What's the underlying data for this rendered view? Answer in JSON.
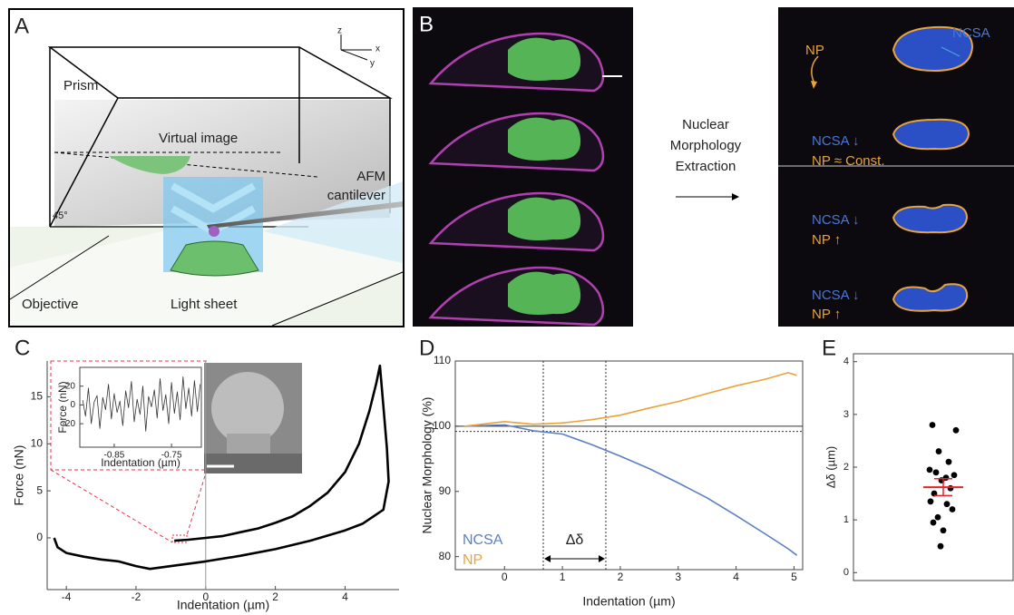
{
  "panel_labels": [
    "A",
    "B",
    "C",
    "D",
    "E"
  ],
  "panel_a": {
    "prism": "Prism",
    "virtual_image": "Virtual image",
    "cantilever": [
      "AFM",
      "cantilever"
    ],
    "angle": "45°",
    "objective": "Objective",
    "light_sheet": "Light sheet",
    "axes": [
      "z",
      "x",
      "y"
    ]
  },
  "panel_b": {
    "process": [
      "Nuclear",
      "Morphology",
      "Extraction"
    ],
    "rows": [
      {
        "np": "NP",
        "ncsa": "NCSA"
      },
      {
        "ncsa": "NCSA ↓",
        "np": "NP ≈ Const."
      },
      {
        "ncsa": "NCSA ↓",
        "np": "NP ↑"
      },
      {
        "ncsa": "NCSA ↓",
        "np": "NP ↑"
      }
    ]
  },
  "chart_data": [
    {
      "type": "line",
      "x_label": "Indentation (µm)",
      "y_label": "Force (nN)",
      "x": [
        -0.9,
        -0.5,
        0,
        0.5,
        1,
        1.5,
        2,
        2.5,
        3,
        3.5,
        4,
        4.4,
        4.7,
        4.9,
        5.0,
        5.1,
        5.2,
        5.25,
        5.1,
        4.5,
        4,
        3,
        2,
        1,
        0,
        -1,
        -1.6,
        -2,
        -2.5,
        -3,
        -3.5,
        -4,
        -4.25,
        -4.35
      ],
      "series": [
        {
          "color": "#000000",
          "values": [
            -0.3,
            -0.2,
            0,
            0.2,
            0.6,
            1.0,
            1.6,
            2.3,
            3.4,
            4.8,
            7,
            10,
            13.5,
            16.5,
            18.3,
            14,
            9.5,
            6,
            3,
            1.5,
            0.8,
            -0.3,
            -1.2,
            -1.9,
            -2.5,
            -3.0,
            -3.3,
            -3.0,
            -2.5,
            -2.3,
            -2.0,
            -1.6,
            -1.0,
            0
          ]
        }
      ],
      "xlim": [
        -4.55,
        5.55
      ],
      "ylim": [
        -5.5,
        18.8
      ],
      "xticks": [
        -4,
        -2,
        0,
        2,
        4
      ],
      "yticks": [
        0,
        5,
        10,
        15
      ],
      "vlines": [
        0
      ]
    },
    {
      "type": "line",
      "x_label": "Indentation (µm)",
      "y_label": "Force (nN)",
      "x": [
        -0.905,
        -0.9,
        -0.895,
        -0.89,
        -0.885,
        -0.88,
        -0.875,
        -0.87,
        -0.865,
        -0.86,
        -0.855,
        -0.85,
        -0.845,
        -0.84,
        -0.835,
        -0.83,
        -0.825,
        -0.82,
        -0.815,
        -0.81,
        -0.805,
        -0.8,
        -0.795,
        -0.79,
        -0.785,
        -0.78,
        -0.775,
        -0.77,
        -0.765,
        -0.76,
        -0.755,
        -0.75,
        -0.745,
        -0.74,
        -0.735,
        -0.73,
        -0.725,
        -0.72,
        -0.715,
        -0.71,
        -0.705,
        -0.7
      ],
      "series": [
        {
          "color": "#333333",
          "values": [
            5,
            -12,
            18,
            -20,
            3,
            10,
            -25,
            8,
            -5,
            22,
            -15,
            12,
            -8,
            4,
            -22,
            15,
            -3,
            25,
            -18,
            6,
            -10,
            20,
            -28,
            9,
            -2,
            16,
            -14,
            28,
            -6,
            11,
            -20,
            24,
            -9,
            14,
            -16,
            30,
            -4,
            18,
            -12,
            26,
            -7,
            22
          ]
        }
      ],
      "xlim": [
        -0.91,
        -0.698
      ],
      "ylim": [
        -45,
        40
      ],
      "xticks": [
        -0.85,
        -0.75
      ],
      "yticks": [
        20,
        0,
        -20
      ]
    },
    {
      "type": "line",
      "x_label": "Indentation (µm)",
      "y_label": "Nuclear Morphology (%)",
      "x": [
        -0.7,
        0,
        0.5,
        1,
        1.5,
        2,
        2.5,
        3,
        3.5,
        4,
        4.5,
        4.9,
        5.05
      ],
      "series": [
        {
          "name": "NCSA",
          "color": "#5b7fc4",
          "values": [
            100,
            100.2,
            99.3,
            98.8,
            97.2,
            95.4,
            93.5,
            91.3,
            89,
            86.3,
            83.5,
            81.2,
            80.2
          ]
        },
        {
          "name": "NP",
          "color": "#e8a33b",
          "values": [
            100,
            100.7,
            100.3,
            100.5,
            101,
            101.7,
            102.8,
            103.8,
            105,
            106.2,
            107.2,
            108.2,
            107.8
          ]
        }
      ],
      "xlim": [
        -0.85,
        5.15
      ],
      "ylim": [
        78,
        110
      ],
      "xticks": [
        0,
        1,
        2,
        3,
        4,
        5
      ],
      "yticks": [
        80,
        90,
        100,
        110
      ],
      "hlines": [
        100,
        99.2
      ],
      "vlines": [
        0.67,
        1.75
      ],
      "annotation": "Δδ"
    },
    {
      "type": "strip",
      "y_label": "Δδ (µm)",
      "values": [
        2.8,
        2.7,
        2.3,
        2.1,
        1.95,
        1.9,
        1.85,
        1.8,
        1.75,
        1.6,
        1.5,
        1.35,
        1.3,
        1.2,
        1.05,
        0.95,
        0.8,
        0.5
      ],
      "color": "#000000",
      "mean": 1.62,
      "error": 0.16,
      "mean_color": "#e8202a",
      "ylim": [
        -0.15,
        4.15
      ],
      "yticks": [
        0,
        1,
        2,
        3,
        4
      ]
    }
  ]
}
